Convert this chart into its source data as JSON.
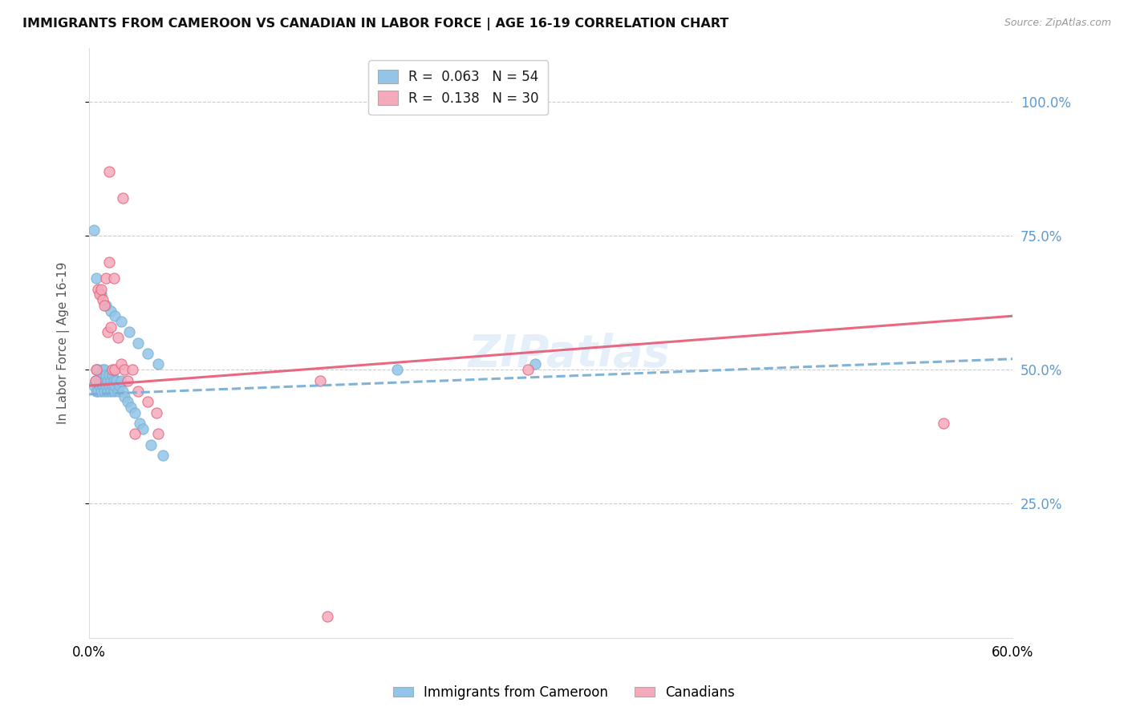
{
  "title": "IMMIGRANTS FROM CAMEROON VS CANADIAN IN LABOR FORCE | AGE 16-19 CORRELATION CHART",
  "source": "Source: ZipAtlas.com",
  "ylabel": "In Labor Force | Age 16-19",
  "x_range": [
    0.0,
    0.6
  ],
  "y_range": [
    0.0,
    1.1
  ],
  "y_ticks": [
    0.25,
    0.5,
    0.75,
    1.0
  ],
  "y_tick_labels": [
    "25.0%",
    "50.0%",
    "75.0%",
    "100.0%"
  ],
  "x_ticks": [
    0.0,
    0.6
  ],
  "x_tick_labels": [
    "0.0%",
    "60.0%"
  ],
  "legend_label1": "Immigrants from Cameroon",
  "legend_label2": "Canadians",
  "R1": 0.063,
  "N1": 54,
  "R2": 0.138,
  "N2": 30,
  "color_blue": "#92C5E8",
  "color_pink": "#F4AABB",
  "trendline_blue": "#7AAFD4",
  "trendline_pink": "#E8607A",
  "watermark": "ZIPatlas",
  "blue_pts_x": [
    0.003,
    0.004,
    0.005,
    0.005,
    0.006,
    0.006,
    0.007,
    0.007,
    0.008,
    0.008,
    0.009,
    0.009,
    0.01,
    0.01,
    0.01,
    0.011,
    0.011,
    0.012,
    0.012,
    0.013,
    0.013,
    0.014,
    0.014,
    0.015,
    0.015,
    0.016,
    0.016,
    0.017,
    0.018,
    0.019,
    0.02,
    0.021,
    0.022,
    0.023,
    0.025,
    0.027,
    0.03,
    0.033,
    0.035,
    0.04,
    0.003,
    0.005,
    0.008,
    0.011,
    0.014,
    0.017,
    0.021,
    0.026,
    0.032,
    0.038,
    0.045,
    0.048,
    0.2,
    0.29
  ],
  "blue_pts_y": [
    0.47,
    0.48,
    0.46,
    0.5,
    0.46,
    0.5,
    0.47,
    0.48,
    0.46,
    0.49,
    0.47,
    0.5,
    0.46,
    0.48,
    0.5,
    0.47,
    0.49,
    0.46,
    0.48,
    0.47,
    0.49,
    0.46,
    0.48,
    0.47,
    0.49,
    0.46,
    0.48,
    0.47,
    0.48,
    0.46,
    0.47,
    0.48,
    0.46,
    0.45,
    0.44,
    0.43,
    0.42,
    0.4,
    0.39,
    0.36,
    0.76,
    0.67,
    0.64,
    0.62,
    0.61,
    0.6,
    0.59,
    0.57,
    0.55,
    0.53,
    0.51,
    0.34,
    0.5,
    0.51
  ],
  "pink_pts_x": [
    0.004,
    0.005,
    0.006,
    0.007,
    0.008,
    0.009,
    0.01,
    0.011,
    0.012,
    0.013,
    0.014,
    0.015,
    0.016,
    0.017,
    0.019,
    0.021,
    0.023,
    0.025,
    0.028,
    0.032,
    0.038,
    0.044,
    0.013,
    0.022,
    0.03,
    0.045,
    0.155,
    0.555,
    0.285,
    0.15
  ],
  "pink_pts_y": [
    0.48,
    0.5,
    0.65,
    0.64,
    0.65,
    0.63,
    0.62,
    0.67,
    0.57,
    0.7,
    0.58,
    0.5,
    0.67,
    0.5,
    0.56,
    0.51,
    0.5,
    0.48,
    0.5,
    0.46,
    0.44,
    0.42,
    0.87,
    0.82,
    0.38,
    0.38,
    0.04,
    0.4,
    0.5,
    0.48
  ],
  "blue_trend_x": [
    0.0,
    0.6
  ],
  "blue_trend_y": [
    0.454,
    0.52
  ],
  "pink_trend_x": [
    0.0,
    0.6
  ],
  "pink_trend_y": [
    0.47,
    0.6
  ]
}
